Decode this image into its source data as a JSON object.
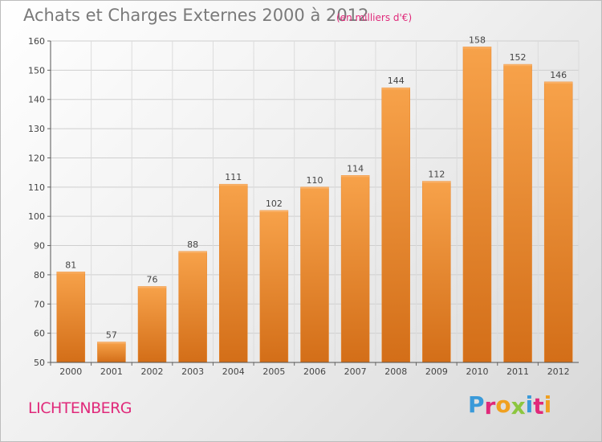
{
  "chart_data": {
    "type": "bar",
    "title": "Achats et Charges Externes 2000 à 2012",
    "subtitle": "(en milliers d'€)",
    "categories": [
      "2000",
      "2001",
      "2002",
      "2003",
      "2004",
      "2005",
      "2006",
      "2007",
      "2008",
      "2009",
      "2010",
      "2011",
      "2012"
    ],
    "values": [
      81,
      57,
      76,
      88,
      111,
      102,
      110,
      114,
      144,
      112,
      158,
      152,
      146
    ],
    "ylim": [
      50,
      160
    ],
    "yticks": [
      50,
      60,
      70,
      80,
      90,
      100,
      110,
      120,
      130,
      140,
      150,
      160
    ],
    "grid": true,
    "bar_color": "#f0923a",
    "bar_color_dark": "#d9721c",
    "xlabel": "",
    "ylabel": ""
  },
  "footer": {
    "city": "LICHTENBERG",
    "brand_letters": [
      {
        "ch": "P",
        "color": "#3a9ad9"
      },
      {
        "ch": "r",
        "color": "#e0297a"
      },
      {
        "ch": "o",
        "color": "#f0a020"
      },
      {
        "ch": "x",
        "color": "#8cc63f"
      },
      {
        "ch": "i",
        "color": "#3a9ad9"
      },
      {
        "ch": "t",
        "color": "#e0297a"
      },
      {
        "ch": "i",
        "color": "#f0a020"
      }
    ]
  }
}
